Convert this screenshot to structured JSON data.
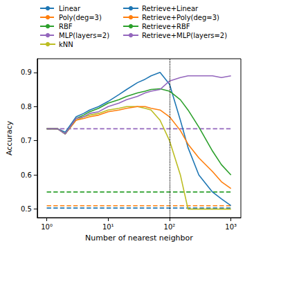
{
  "chart_data": {
    "type": "line",
    "x_label": "Number of nearest neighbor",
    "y_label": "Accuracy",
    "log": "x",
    "grid": false,
    "legend": "top",
    "xlim": [
      0.7,
      1450
    ],
    "xticks": [
      {
        "value": 1,
        "label": "10⁰"
      },
      {
        "value": 10,
        "label": "10¹"
      },
      {
        "value": 100,
        "label": "10²"
      },
      {
        "value": 1000,
        "label": "10³"
      }
    ],
    "ylim": [
      0.475,
      0.94
    ],
    "yticks": [
      0.5,
      0.6,
      0.7,
      0.8,
      0.9
    ],
    "vlines": [
      100
    ],
    "x": [
      1,
      1.5,
      2,
      3,
      4,
      5,
      7,
      10,
      15,
      20,
      30,
      40,
      50,
      70,
      100,
      150,
      200,
      300,
      500,
      700,
      1000
    ],
    "series": [
      {
        "name": "Linear",
        "color": "#1f77b4",
        "line_style": "dashed",
        "values": [
          0.503,
          0.503,
          0.503,
          0.503,
          0.503,
          0.503,
          0.503,
          0.503,
          0.503,
          0.503,
          0.503,
          0.503,
          0.503,
          0.503,
          0.503,
          0.503,
          0.503,
          0.503,
          0.503,
          0.503,
          0.503
        ]
      },
      {
        "name": "Poly(deg=3)",
        "color": "#ff7f0e",
        "line_style": "dashed",
        "values": [
          0.51,
          0.51,
          0.51,
          0.51,
          0.51,
          0.51,
          0.51,
          0.51,
          0.51,
          0.51,
          0.51,
          0.51,
          0.51,
          0.51,
          0.51,
          0.51,
          0.51,
          0.51,
          0.51,
          0.51,
          0.51
        ]
      },
      {
        "name": "RBF",
        "color": "#2ca02c",
        "line_style": "dashed",
        "values": [
          0.55,
          0.55,
          0.55,
          0.55,
          0.55,
          0.55,
          0.55,
          0.55,
          0.55,
          0.55,
          0.55,
          0.55,
          0.55,
          0.55,
          0.55,
          0.55,
          0.55,
          0.55,
          0.55,
          0.55,
          0.55
        ]
      },
      {
        "name": "MLP(layers=2)",
        "color": "#9467bd",
        "line_style": "dashed",
        "values": [
          0.735,
          0.735,
          0.735,
          0.735,
          0.735,
          0.735,
          0.735,
          0.735,
          0.735,
          0.735,
          0.735,
          0.735,
          0.735,
          0.735,
          0.735,
          0.735,
          0.735,
          0.735,
          0.735,
          0.735,
          0.735
        ]
      },
      {
        "name": "kNN",
        "color": "#bcbd22",
        "line_style": "solid",
        "values": [
          0.735,
          0.735,
          0.72,
          0.76,
          0.77,
          0.775,
          0.78,
          0.79,
          0.795,
          0.8,
          0.8,
          0.795,
          0.79,
          0.76,
          0.7,
          0.6,
          0.5,
          0.5,
          0.5,
          0.5,
          0.5
        ]
      },
      {
        "name": "Retrieve+Linear",
        "color": "#1f77b4",
        "line_style": "solid",
        "values": [
          0.735,
          0.735,
          0.725,
          0.77,
          0.78,
          0.79,
          0.8,
          0.815,
          0.835,
          0.85,
          0.87,
          0.88,
          0.89,
          0.9,
          0.865,
          0.76,
          0.68,
          0.6,
          0.55,
          0.53,
          0.51
        ]
      },
      {
        "name": "Retrieve+Poly(deg=3)",
        "color": "#ff7f0e",
        "line_style": "solid",
        "values": [
          0.735,
          0.735,
          0.72,
          0.76,
          0.765,
          0.77,
          0.775,
          0.785,
          0.79,
          0.795,
          0.8,
          0.8,
          0.795,
          0.79,
          0.77,
          0.73,
          0.69,
          0.65,
          0.61,
          0.58,
          0.56
        ]
      },
      {
        "name": "Retrieve+RBF",
        "color": "#2ca02c",
        "line_style": "solid",
        "values": [
          0.735,
          0.735,
          0.72,
          0.765,
          0.775,
          0.785,
          0.795,
          0.81,
          0.82,
          0.83,
          0.84,
          0.845,
          0.85,
          0.852,
          0.845,
          0.82,
          0.79,
          0.74,
          0.67,
          0.63,
          0.6
        ]
      },
      {
        "name": "Retrieve+MLP(layers=2)",
        "color": "#9467bd",
        "line_style": "solid",
        "values": [
          0.735,
          0.735,
          0.72,
          0.765,
          0.77,
          0.78,
          0.785,
          0.8,
          0.81,
          0.82,
          0.83,
          0.84,
          0.845,
          0.85,
          0.875,
          0.885,
          0.89,
          0.89,
          0.89,
          0.885,
          0.89
        ]
      }
    ]
  }
}
